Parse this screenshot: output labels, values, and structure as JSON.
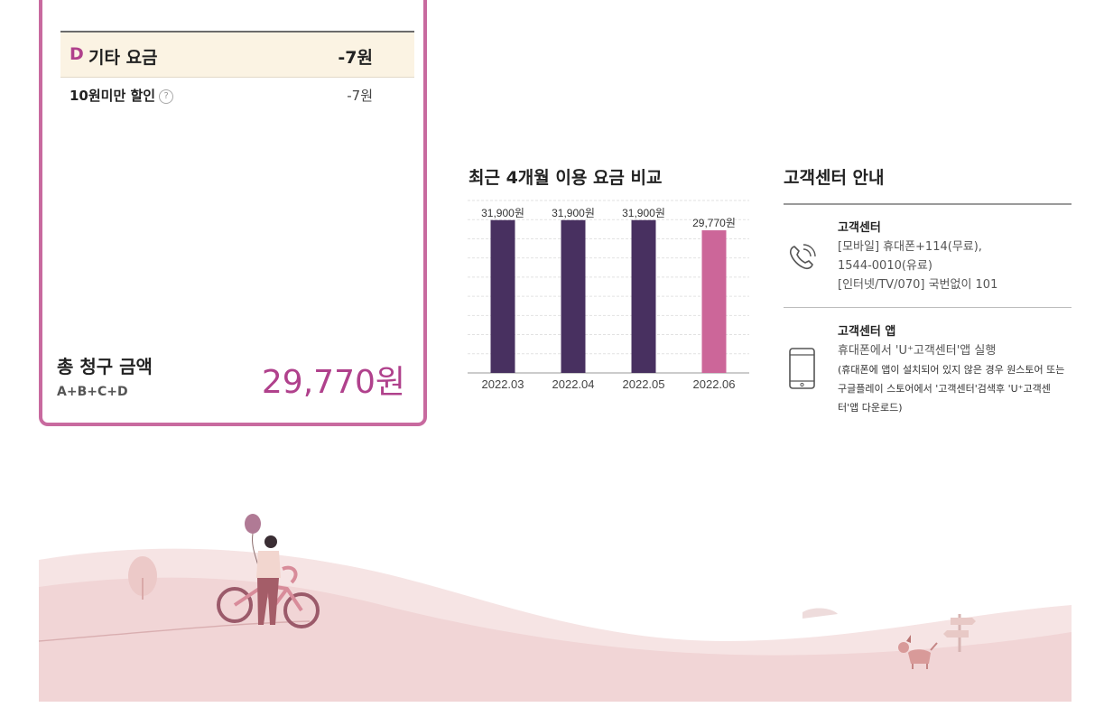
{
  "bill": {
    "d_section": {
      "letter": "D",
      "title": "기타 요금",
      "amount": "-7원"
    },
    "items": [
      {
        "label": "10원미만 할인",
        "help": "?",
        "amount": "-7원"
      }
    ],
    "total": {
      "label": "총 청구 금액",
      "formula": "A+B+C+D",
      "amount": "29,770원"
    },
    "colors": {
      "accent": "#b0418c",
      "border": "#c86a9f",
      "highlight_bg": "#fbf3e3"
    }
  },
  "chart_title": "최근 4개월 이용 요금 비교",
  "chart_data": {
    "type": "bar",
    "categories": [
      "2022.03",
      "2022.04",
      "2022.05",
      "2022.06"
    ],
    "values": [
      31900,
      31900,
      31900,
      29770
    ],
    "value_labels": [
      "31,900원",
      "31,900원",
      "31,900원",
      "29,770원"
    ],
    "ylim": [
      0,
      36000
    ],
    "grid": true,
    "colors": [
      "#483060",
      "#483060",
      "#483060",
      "#cc6699"
    ]
  },
  "customer_center": {
    "title": "고객센터 안내",
    "center": {
      "icon": "phone-icon",
      "title": "고객센터",
      "lines": [
        "[모바일] 휴대폰+114(무료),",
        "1544-0010(유료)",
        "[인터넷/TV/070] 국번없이 101"
      ]
    },
    "app": {
      "icon": "mobile-phone-icon",
      "title": "고객센터 앱",
      "line1": "휴대폰에서 'U⁺고객센터'앱 실행",
      "notes": [
        "(휴대폰에 앱이 설치되어 있지 않은 경우 원스토어 또는",
        "구글플레이 스토어에서 '고객센터'검색후 'U⁺고객센",
        "터'앱 다운로드)"
      ]
    }
  },
  "illustration": {
    "icons": [
      "balloon-icon",
      "bicycle-icon",
      "tree-icon",
      "dog-icon",
      "signpost-icon"
    ]
  }
}
